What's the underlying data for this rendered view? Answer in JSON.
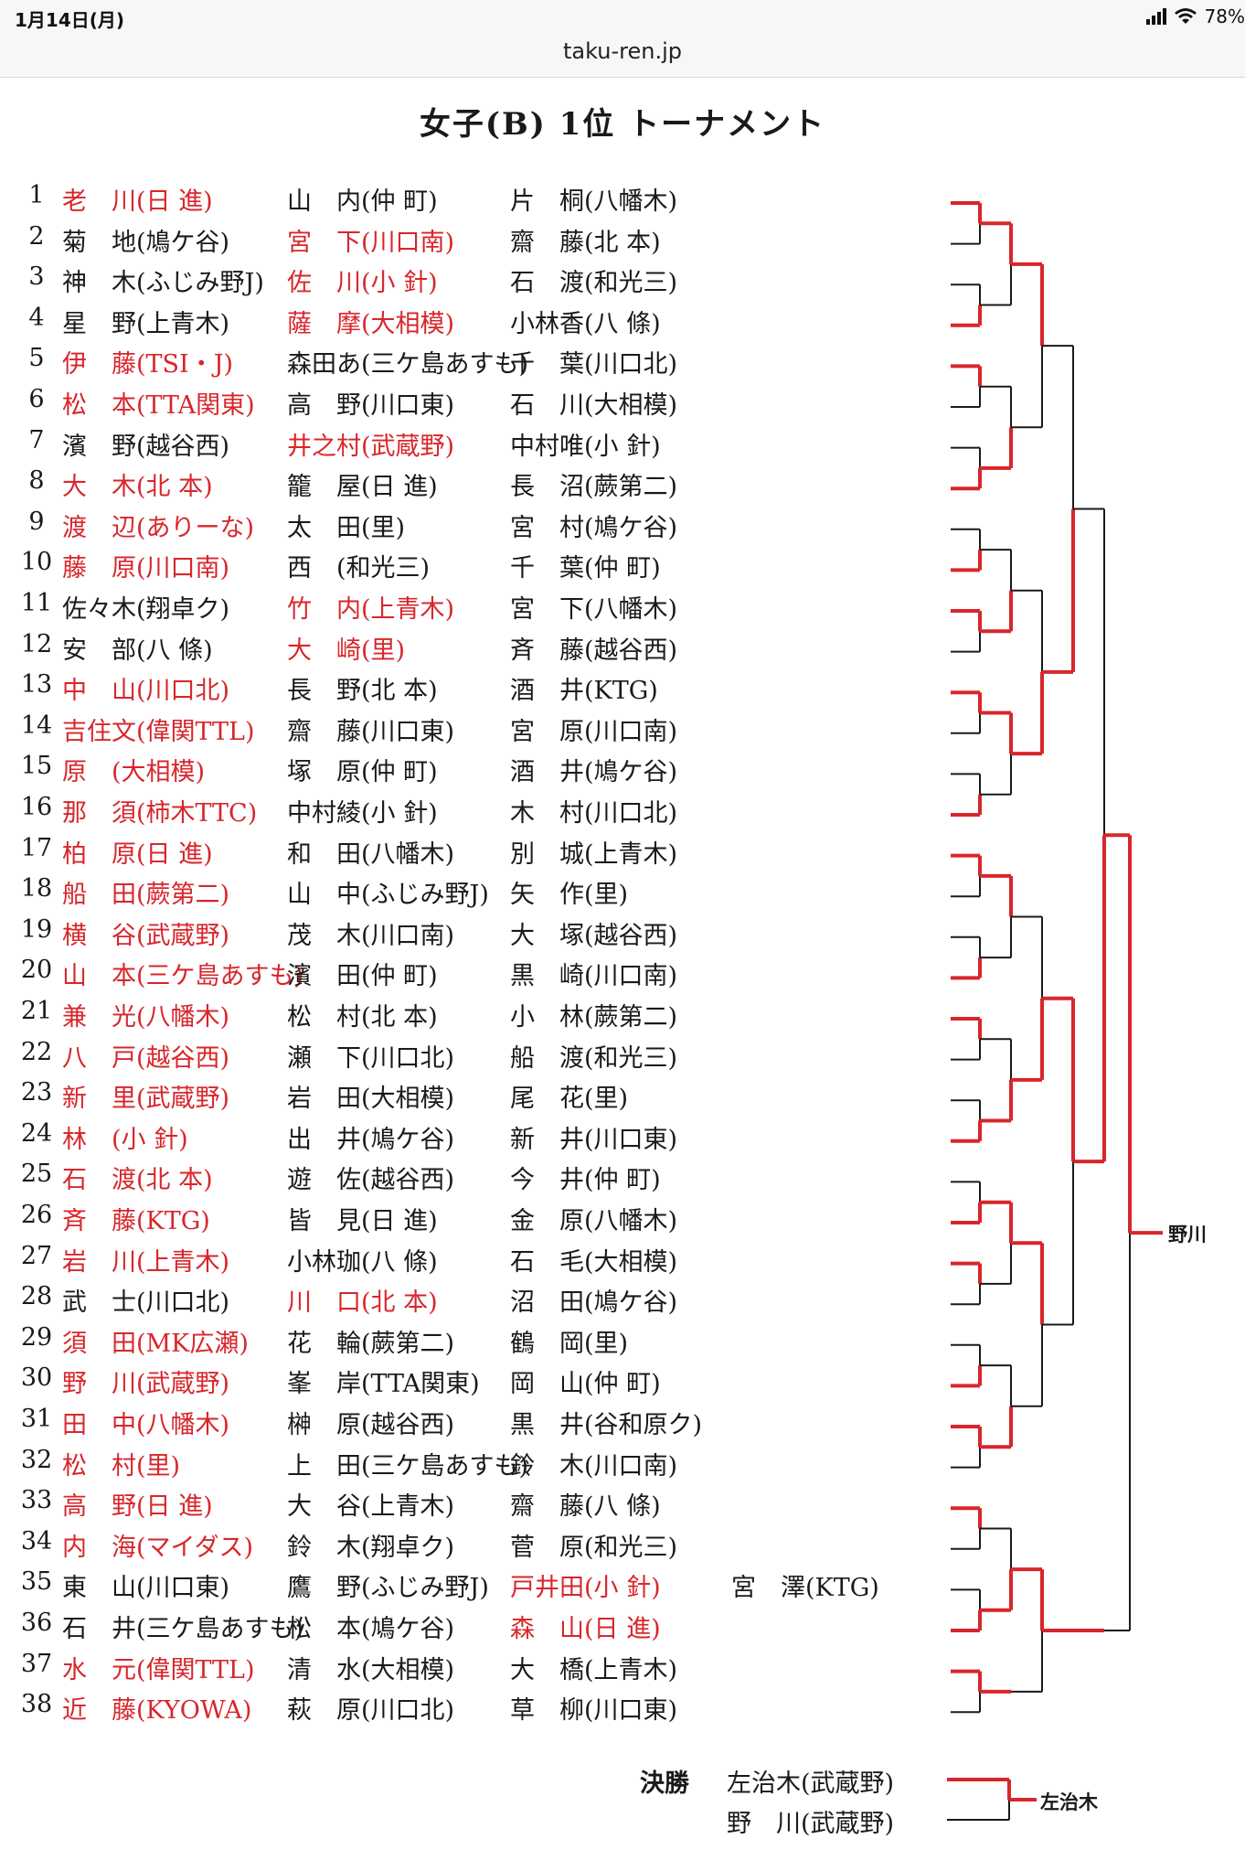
{
  "status_bar": {
    "time": "1月14日(月)",
    "battery": "78%",
    "url": "taku-ren.jp"
  },
  "title": "女子(B)  1位  トーナメント",
  "rows": [
    {
      "no": "1",
      "a": "老　川(日 進)",
      "b": "山　内(仲 町)",
      "c": "片　桐(八幡木)",
      "win": "a"
    },
    {
      "no": "2",
      "a": "菊　地(鳩ケ谷)",
      "b": "宮　下(川口南)",
      "c": "齋　藤(北 本)",
      "win": "b"
    },
    {
      "no": "3",
      "a": "神　木(ふじみ野J)",
      "b": "佐　川(小 針)",
      "c": "石　渡(和光三)",
      "win": "b"
    },
    {
      "no": "4",
      "a": "星　野(上青木)",
      "b": "薩　摩(大相模)",
      "c": "小林香(八 條)",
      "win": "b"
    },
    {
      "no": "5",
      "a": "伊　藤(TSI・J)",
      "b": "森田あ(三ケ島あすも)",
      "c": "千　葉(川口北)",
      "win": "a"
    },
    {
      "no": "6",
      "a": "松　本(TTA関東)",
      "b": "高　野(川口東)",
      "c": "石　川(大相模)",
      "win": "a"
    },
    {
      "no": "7",
      "a": "濱　野(越谷西)",
      "b": "井之村(武蔵野)",
      "c": "中村唯(小 針)",
      "win": "b"
    },
    {
      "no": "8",
      "a": "大　木(北 本)",
      "b": "籠　屋(日 進)",
      "c": "長　沼(蕨第二)",
      "win": "a"
    },
    {
      "no": "9",
      "a": "渡　辺(ありーな)",
      "b": "太　田(里)",
      "c": "宮　村(鳩ケ谷)",
      "win": "a"
    },
    {
      "no": "10",
      "a": "藤　原(川口南)",
      "b": "西　(和光三)",
      "c": "千　葉(仲 町)",
      "win": "a"
    },
    {
      "no": "11",
      "a": "佐々木(翔卓ク)",
      "b": "竹　内(上青木)",
      "c": "宮　下(八幡木)",
      "win": "b"
    },
    {
      "no": "12",
      "a": "安　部(八 條)",
      "b": "大　崎(里)",
      "c": "斉　藤(越谷西)",
      "win": "b"
    },
    {
      "no": "13",
      "a": "中　山(川口北)",
      "b": "長　野(北 本)",
      "c": "酒　井(KTG)",
      "win": "a"
    },
    {
      "no": "14",
      "a": "吉住文(偉関TTL)",
      "b": "齋　藤(川口東)",
      "c": "宮　原(川口南)",
      "win": "a"
    },
    {
      "no": "15",
      "a": "原　(大相模)",
      "b": "塚　原(仲 町)",
      "c": "酒　井(鳩ケ谷)",
      "win": "a"
    },
    {
      "no": "16",
      "a": "那　須(柿木TTC)",
      "b": "中村綾(小 針)",
      "c": "木　村(川口北)",
      "win": "a"
    },
    {
      "no": "17",
      "a": "柏　原(日 進)",
      "b": "和　田(八幡木)",
      "c": "別　城(上青木)",
      "win": "a"
    },
    {
      "no": "18",
      "a": "船　田(蕨第二)",
      "b": "山　中(ふじみ野J)",
      "c": "矢　作(里)",
      "win": "a"
    },
    {
      "no": "19",
      "a": "横　谷(武蔵野)",
      "b": "茂　木(川口南)",
      "c": "大　塚(越谷西)",
      "win": "a"
    },
    {
      "no": "20",
      "a": "山　本(三ケ島あすも)",
      "b": "濱　田(仲 町)",
      "c": "黒　崎(川口南)",
      "win": "a"
    },
    {
      "no": "21",
      "a": "兼　光(八幡木)",
      "b": "松　村(北 本)",
      "c": "小　林(蕨第二)",
      "win": "a"
    },
    {
      "no": "22",
      "a": "八　戸(越谷西)",
      "b": "瀬　下(川口北)",
      "c": "船　渡(和光三)",
      "win": "a"
    },
    {
      "no": "23",
      "a": "新　里(武蔵野)",
      "b": "岩　田(大相模)",
      "c": "尾　花(里)",
      "win": "a"
    },
    {
      "no": "24",
      "a": "林　(小 針)",
      "b": "出　井(鳩ケ谷)",
      "c": "新　井(川口東)",
      "win": "a"
    },
    {
      "no": "25",
      "a": "石　渡(北 本)",
      "b": "遊　佐(越谷西)",
      "c": "今　井(仲 町)",
      "win": "a"
    },
    {
      "no": "26",
      "a": "斉　藤(KTG)",
      "b": "皆　見(日 進)",
      "c": "金　原(八幡木)",
      "win": "a"
    },
    {
      "no": "27",
      "a": "岩　川(上青木)",
      "b": "小林珈(八 條)",
      "c": "石　毛(大相模)",
      "win": "a"
    },
    {
      "no": "28",
      "a": "武　士(川口北)",
      "b": "川　口(北 本)",
      "c": "沼　田(鳩ケ谷)",
      "win": "b"
    },
    {
      "no": "29",
      "a": "須　田(MK広瀬)",
      "b": "花　輪(蕨第二)",
      "c": "鶴　岡(里)",
      "win": "a"
    },
    {
      "no": "30",
      "a": "野　川(武蔵野)",
      "b": "峯　岸(TTA関東)",
      "c": "岡　山(仲 町)",
      "win": "a"
    },
    {
      "no": "31",
      "a": "田　中(八幡木)",
      "b": "榊　原(越谷西)",
      "c": "黒　井(谷和原ク)",
      "win": "a"
    },
    {
      "no": "32",
      "a": "松　村(里)",
      "b": "上　田(三ケ島あすも)",
      "c": "鈴　木(川口南)",
      "win": "a"
    },
    {
      "no": "33",
      "a": "高　野(日 進)",
      "b": "大　谷(上青木)",
      "c": "齋　藤(八 條)",
      "win": "a"
    },
    {
      "no": "34",
      "a": "内　海(マイダス)",
      "b": "鈴　木(翔卓ク)",
      "c": "菅　原(和光三)",
      "win": "a"
    },
    {
      "no": "35",
      "a": "東　山(川口東)",
      "b": "鷹　野(ふじみ野J)",
      "c": "戸井田(小 針)",
      "d": "宮　澤(KTG)",
      "win": "c"
    },
    {
      "no": "36",
      "a": "石　井(三ケ島あすも)",
      "b": "松　本(鳩ケ谷)",
      "c": "森　山(日 進)",
      "win": "c"
    },
    {
      "no": "37",
      "a": "水　元(偉関TTL)",
      "b": "清　水(大相模)",
      "c": "大　橋(上青木)",
      "win": "a"
    },
    {
      "no": "38",
      "a": "近　藤(KYOWA)",
      "b": "萩　原(川口北)",
      "c": "草　柳(川口東)",
      "win": "a"
    }
  ],
  "bracket_winner": "野川",
  "final": {
    "label": "決勝",
    "player1": "左治木(武蔵野)",
    "player2": "野　川(武蔵野)",
    "winner": "左治木"
  },
  "colors": {
    "red": "#d8262b",
    "black": "#1a1a1a"
  }
}
